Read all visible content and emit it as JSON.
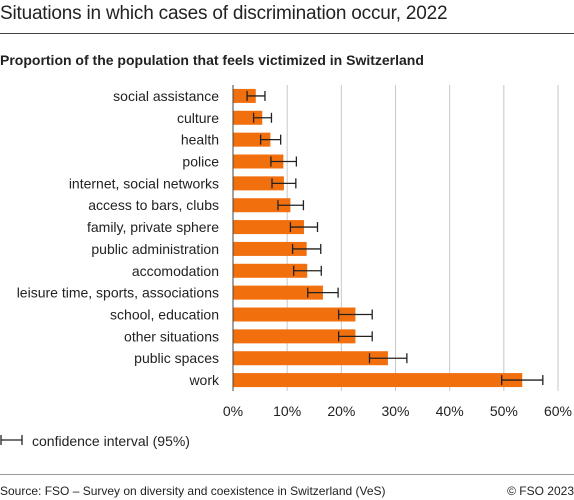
{
  "chart_data": {
    "type": "bar",
    "orientation": "horizontal",
    "title": "Situations in which cases of discrimination occur, 2022",
    "subtitle": "Proportion of the population that feels victimized in Switzerland",
    "categories": [
      "social assistance",
      "culture",
      "health",
      "police",
      "internet, social networks",
      "access to bars, clubs",
      "family, private sphere",
      "public administration",
      "accomodation",
      "leisure time, sports, associations",
      "school, education",
      "other situations",
      "public spaces",
      "work"
    ],
    "values": [
      4.2,
      5.4,
      6.9,
      9.3,
      9.4,
      10.6,
      13.1,
      13.6,
      13.7,
      16.6,
      22.6,
      22.6,
      28.6,
      53.4
    ],
    "ci_low": [
      2.6,
      3.8,
      5.1,
      7.0,
      7.2,
      8.3,
      10.6,
      11.0,
      11.2,
      13.8,
      19.5,
      19.5,
      25.2,
      49.6
    ],
    "ci_high": [
      5.9,
      7.1,
      8.8,
      11.7,
      11.6,
      13.0,
      15.6,
      16.2,
      16.3,
      19.4,
      25.7,
      25.7,
      32.1,
      57.2
    ],
    "x_ticks": [
      "0%",
      "10%",
      "20%",
      "30%",
      "40%",
      "50%",
      "60%"
    ],
    "xlim": [
      0,
      60
    ],
    "grid": true,
    "colors": {
      "bar": "#f26f0e",
      "grid": "#c8c8c8",
      "axis": "#444444",
      "errorbar": "#222222"
    }
  },
  "legend": {
    "label": "confidence interval (95%)"
  },
  "footer": {
    "source": "Source: FSO – Survey on diversity and coexistence in Switzerland (VeS)",
    "copyright": "© FSO 2023"
  }
}
